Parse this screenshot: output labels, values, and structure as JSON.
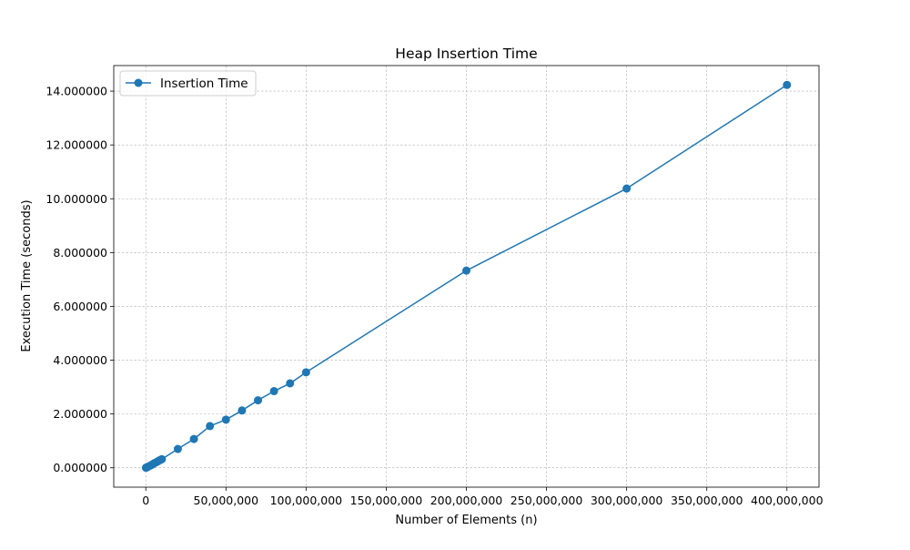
{
  "chart_data": {
    "type": "line",
    "title": "Heap Insertion Time",
    "xlabel": "Number of Elements (n)",
    "ylabel": "Execution Time (seconds)",
    "xlim": [
      -20000000,
      420000000
    ],
    "ylim": [
      -0.72,
      14.95
    ],
    "x_ticks": [
      0,
      50000000,
      100000000,
      150000000,
      200000000,
      250000000,
      300000000,
      350000000,
      400000000
    ],
    "x_tick_labels": [
      "0",
      "50,000,000",
      "100,000,000",
      "150,000,000",
      "200,000,000",
      "250,000,000",
      "300,000,000",
      "350,000,000",
      "400,000,000"
    ],
    "y_ticks": [
      0,
      2,
      4,
      6,
      8,
      10,
      12,
      14
    ],
    "y_tick_labels": [
      "0.000000",
      "2.000000",
      "4.000000",
      "6.000000",
      "8.000000",
      "10.000000",
      "12.000000",
      "14.000000"
    ],
    "grid": true,
    "legend": "upper-left",
    "series": [
      {
        "name": "Insertion Time",
        "color": "#1f77b4",
        "marker": "circle",
        "x": [
          100000,
          500000,
          1000000,
          2000000,
          3000000,
          4000000,
          5000000,
          6000000,
          7000000,
          8000000,
          9000000,
          10000000,
          20000000,
          30000000,
          40000000,
          50000000,
          60000000,
          70000000,
          80000000,
          90000000,
          100000000,
          200000000,
          300000000,
          400000000
        ],
        "y": [
          0.003,
          0.015,
          0.03,
          0.06,
          0.09,
          0.12,
          0.16,
          0.19,
          0.22,
          0.26,
          0.29,
          0.32,
          0.7,
          1.07,
          1.55,
          1.79,
          2.13,
          2.51,
          2.85,
          3.14,
          3.55,
          7.33,
          10.38,
          14.23
        ]
      }
    ]
  }
}
